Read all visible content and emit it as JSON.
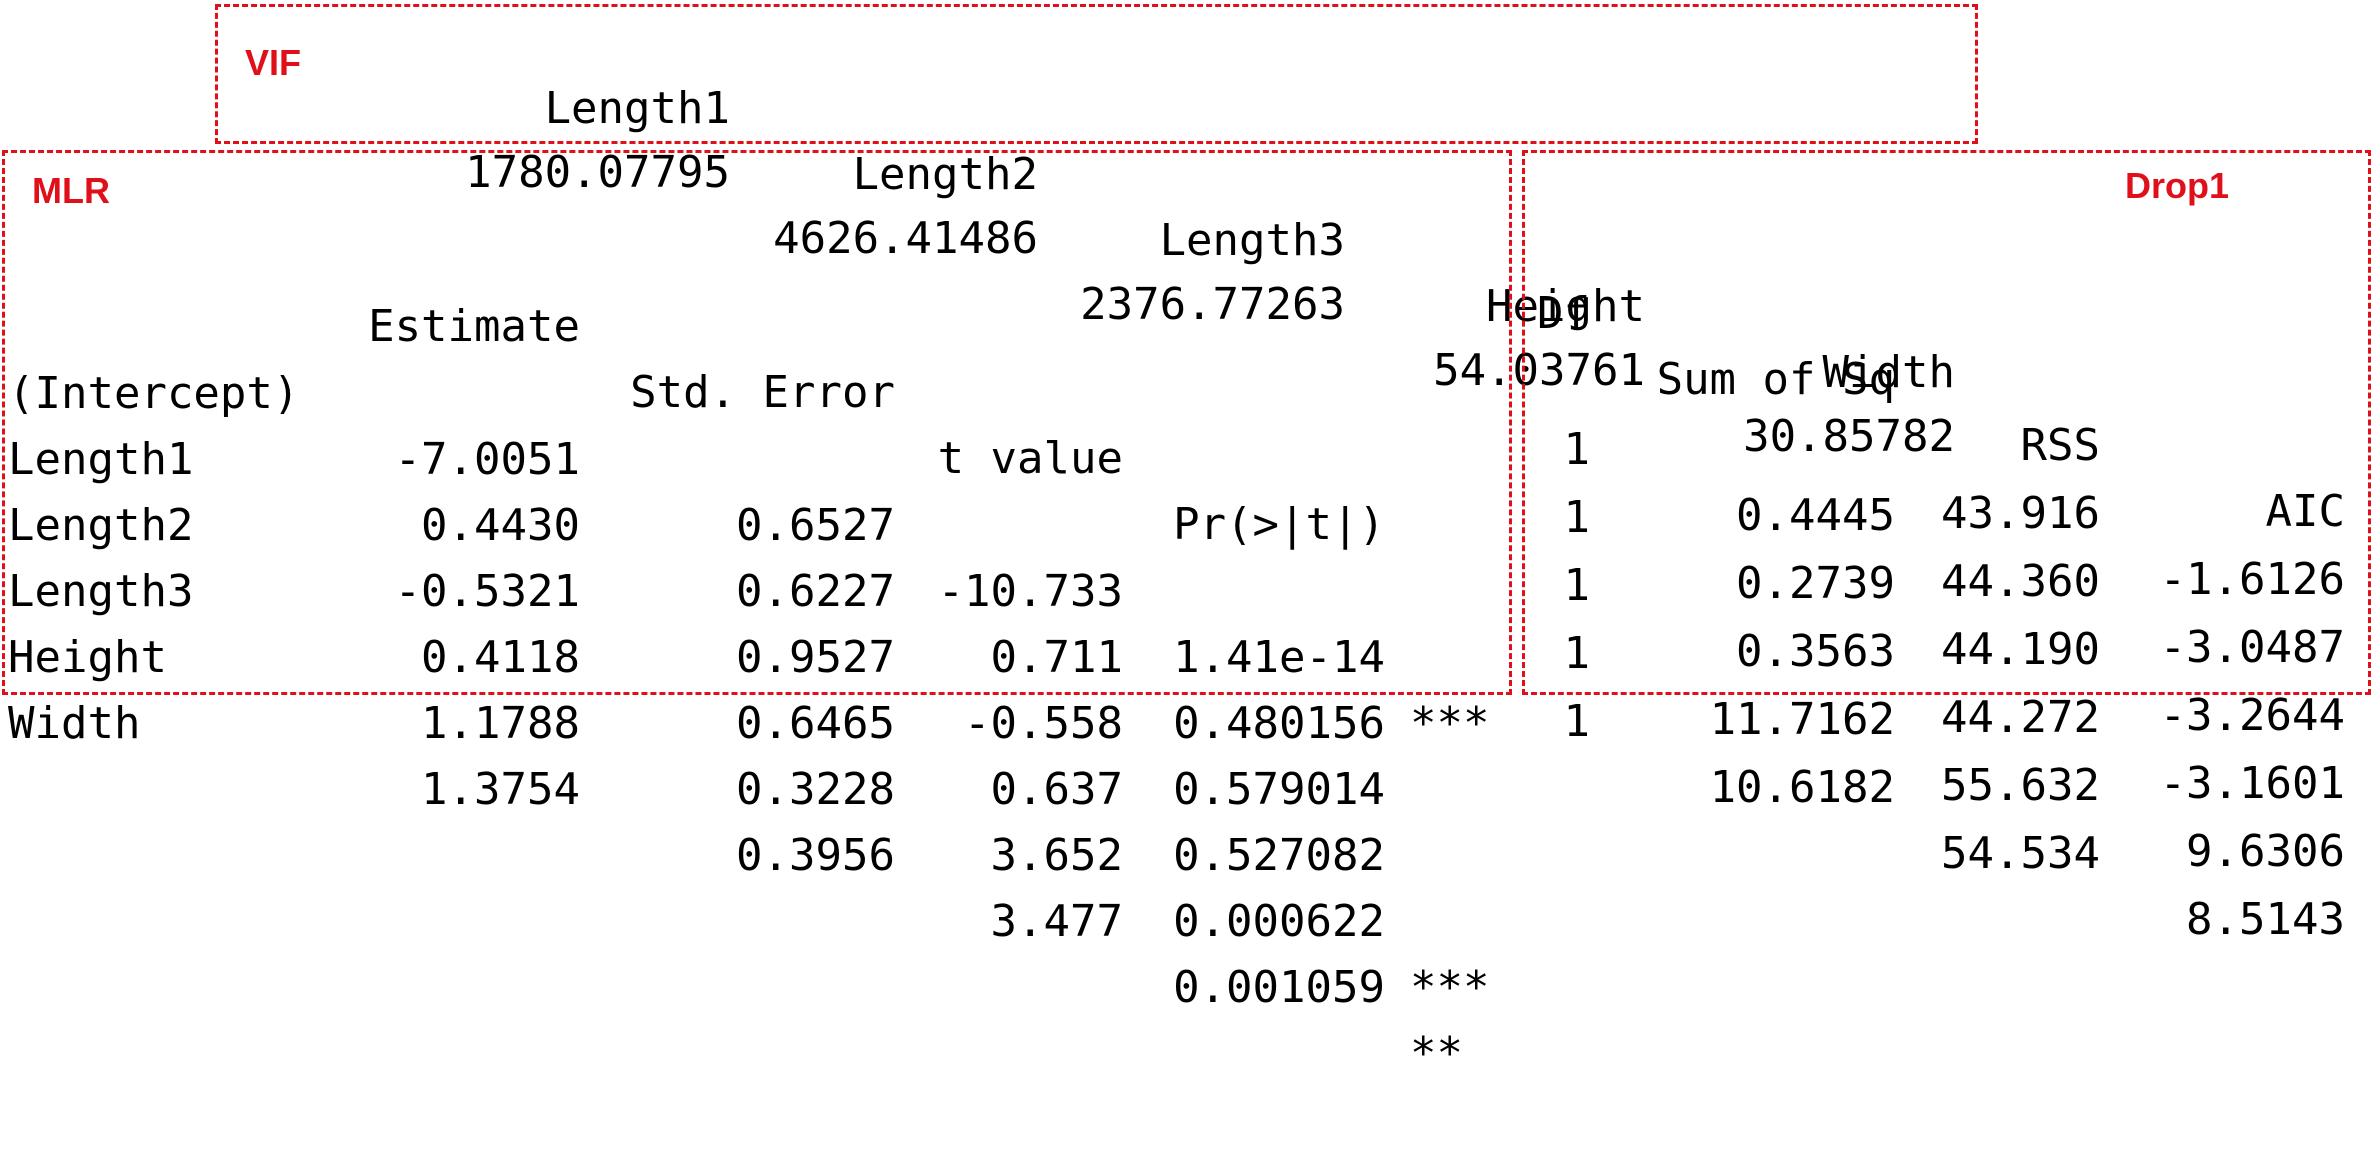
{
  "vif": {
    "label": "VIF",
    "headers": [
      "Length1",
      "Length2",
      "Length3",
      "Height",
      "Width"
    ],
    "values": [
      "1780.07795",
      "4626.41486",
      "2376.77263",
      "54.03761",
      "30.85782"
    ]
  },
  "mlr": {
    "label": "MLR",
    "headers": [
      "Estimate",
      "Std. Error",
      "t value",
      "Pr(>|t|)"
    ],
    "rows": [
      {
        "name": "(Intercept)",
        "estimate": "-7.0051",
        "se": "0.6527",
        "t": "-10.733",
        "p": "1.41e-14",
        "sig": "***"
      },
      {
        "name": "Length1",
        "estimate": "0.4430",
        "se": "0.6227",
        "t": "0.711",
        "p": "0.480156",
        "sig": ""
      },
      {
        "name": "Length2",
        "estimate": "-0.5321",
        "se": "0.9527",
        "t": "-0.558",
        "p": "0.579014",
        "sig": ""
      },
      {
        "name": "Length3",
        "estimate": "0.4118",
        "se": "0.6465",
        "t": "0.637",
        "p": "0.527082",
        "sig": ""
      },
      {
        "name": "Height",
        "estimate": "1.1788",
        "se": "0.3228",
        "t": "3.652",
        "p": "0.000622",
        "sig": "***"
      },
      {
        "name": "Width",
        "estimate": "1.3754",
        "se": "0.3956",
        "t": "3.477",
        "p": "0.001059",
        "sig": "**"
      }
    ]
  },
  "drop1": {
    "label": "Drop1",
    "headers": [
      "Df",
      "Sum of Sq",
      "RSS",
      "AIC"
    ],
    "rows": [
      {
        "df": "",
        "ss": "",
        "rss": "43.916",
        "aic": "-1.6126"
      },
      {
        "df": "1",
        "ss": "0.4445",
        "rss": "44.360",
        "aic": "-3.0487"
      },
      {
        "df": "1",
        "ss": "0.2739",
        "rss": "44.190",
        "aic": "-3.2644"
      },
      {
        "df": "1",
        "ss": "0.3563",
        "rss": "44.272",
        "aic": "-3.1601"
      },
      {
        "df": "1",
        "ss": "11.7162",
        "rss": "55.632",
        "aic": "9.6306"
      },
      {
        "df": "1",
        "ss": "10.6182",
        "rss": "54.534",
        "aic": "8.5143"
      }
    ]
  },
  "colors": {
    "accent": "#e0101a",
    "text": "#000000",
    "background": "#ffffff"
  }
}
